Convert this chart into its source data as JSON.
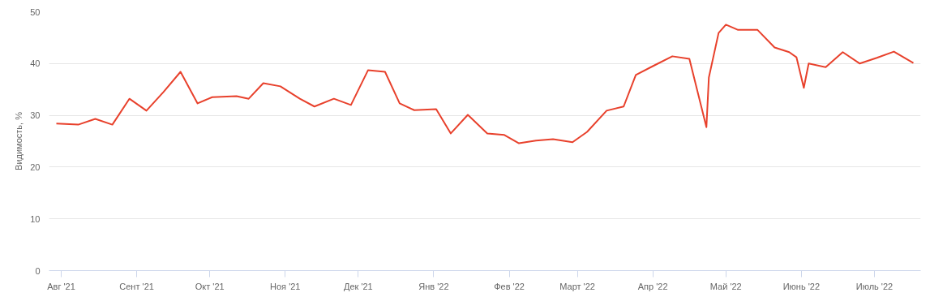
{
  "chart_data": {
    "type": "line",
    "ylabel": "Видимость, %",
    "x": [
      "2021-07-30",
      "2021-08-08",
      "2021-08-15",
      "2021-08-22",
      "2021-08-29",
      "2021-09-05",
      "2021-09-12",
      "2021-09-19",
      "2021-09-26",
      "2021-10-02",
      "2021-10-12",
      "2021-10-17",
      "2021-10-23",
      "2021-10-30",
      "2021-11-07",
      "2021-11-13",
      "2021-11-21",
      "2021-11-28",
      "2021-12-05",
      "2021-12-12",
      "2021-12-18",
      "2021-12-24",
      "2022-01-02",
      "2022-01-08",
      "2022-01-15",
      "2022-01-23",
      "2022-01-30",
      "2022-02-05",
      "2022-02-12",
      "2022-02-19",
      "2022-02-27",
      "2022-03-05",
      "2022-03-13",
      "2022-03-20",
      "2022-03-25",
      "2022-04-01",
      "2022-04-09",
      "2022-04-16",
      "2022-04-23",
      "2022-04-24",
      "2022-04-28",
      "2022-05-01",
      "2022-05-06",
      "2022-05-14",
      "2022-05-21",
      "2022-05-27",
      "2022-05-30",
      "2022-06-02",
      "2022-06-04",
      "2022-06-11",
      "2022-06-18",
      "2022-06-25",
      "2022-07-02",
      "2022-07-09",
      "2022-07-17"
    ],
    "series": [
      {
        "color": "#e8412c",
        "values": [
          28.4,
          28.2,
          29.3,
          28.2,
          33.2,
          30.9,
          34.5,
          38.4,
          32.3,
          33.5,
          33.7,
          33.2,
          36.2,
          35.6,
          33.2,
          31.7,
          33.2,
          32.0,
          38.7,
          38.4,
          32.3,
          31.0,
          31.2,
          26.5,
          30.1,
          26.5,
          26.2,
          24.6,
          25.1,
          25.4,
          24.8,
          26.8,
          30.9,
          31.7,
          37.8,
          39.5,
          41.4,
          40.9,
          27.7,
          37.3,
          45.9,
          47.5,
          46.5,
          46.5,
          43.1,
          42.2,
          41.2,
          35.3,
          40.0,
          39.3,
          42.2,
          40.0,
          41.1,
          42.3,
          40.1
        ]
      }
    ],
    "xlim": [
      "2021-07-27",
      "2022-07-20"
    ],
    "xticks": [
      {
        "value": "2021-08-01",
        "label": "Авг '21"
      },
      {
        "value": "2021-09-01",
        "label": "Сент '21"
      },
      {
        "value": "2021-10-01",
        "label": "Окт '21"
      },
      {
        "value": "2021-11-01",
        "label": "Ноя '21"
      },
      {
        "value": "2021-12-01",
        "label": "Дек '21"
      },
      {
        "value": "2022-01-01",
        "label": "Янв '22"
      },
      {
        "value": "2022-02-01",
        "label": "Фев '22"
      },
      {
        "value": "2022-03-01",
        "label": "Март '22"
      },
      {
        "value": "2022-04-01",
        "label": "Апр '22"
      },
      {
        "value": "2022-05-01",
        "label": "Май '22"
      },
      {
        "value": "2022-06-01",
        "label": "Июнь '22"
      },
      {
        "value": "2022-07-01",
        "label": "Июль '22"
      }
    ],
    "ylim": [
      0,
      50
    ],
    "yticks": [
      0,
      10,
      20,
      30,
      40,
      50
    ],
    "grid": "y",
    "marker": "none",
    "line_style": "solid"
  }
}
